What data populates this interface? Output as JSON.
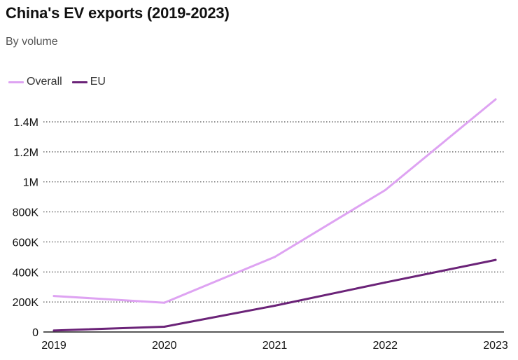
{
  "chart_data": {
    "type": "line",
    "title": "China's EV exports (2019-2023)",
    "subtitle": "By volume",
    "xlabel": "",
    "ylabel": "",
    "x": [
      "2019",
      "2020",
      "2021",
      "2022",
      "2023"
    ],
    "ylim": [
      0,
      1400000
    ],
    "yticks": [
      0,
      200000,
      400000,
      600000,
      800000,
      1000000,
      1200000,
      1400000
    ],
    "ytick_labels": [
      "0",
      "200K",
      "400K",
      "600K",
      "800K",
      "1M",
      "1.2M",
      "1.4M"
    ],
    "grid": true,
    "legend_position": "top-left",
    "series": [
      {
        "name": "Overall",
        "color": "#dea3f2",
        "values": [
          240000,
          195000,
          500000,
          945000,
          1550000
        ]
      },
      {
        "name": "EU",
        "color": "#6b2378",
        "values": [
          10000,
          35000,
          175000,
          330000,
          480000
        ]
      }
    ]
  }
}
